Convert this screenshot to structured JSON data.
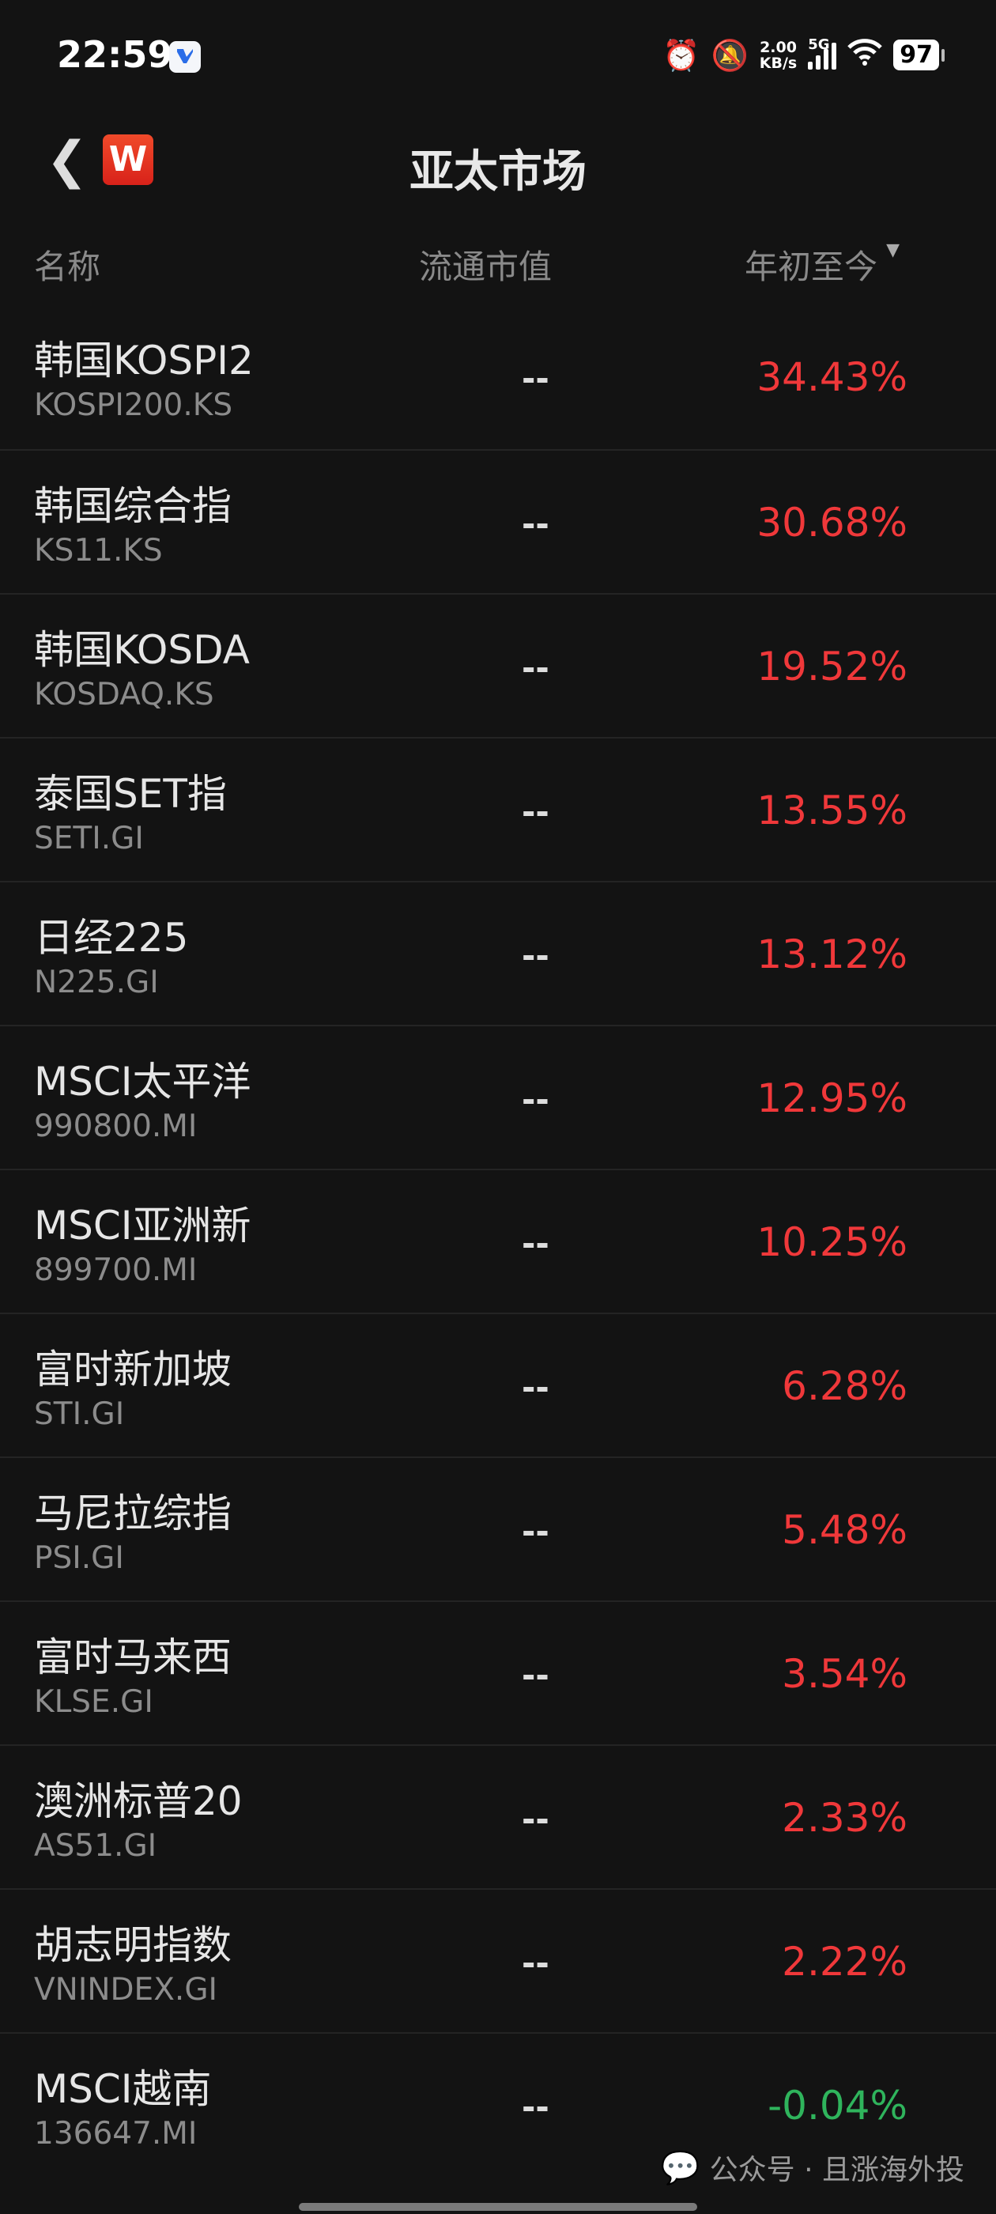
{
  "status_bar": {
    "time": "22:59",
    "net_speed_value": "2.00",
    "net_speed_unit": "KB/s",
    "network": "5G",
    "battery": "97",
    "icons": [
      "alarm-icon",
      "mute-bell-icon",
      "signal-icon",
      "wifi-icon",
      "battery-icon"
    ]
  },
  "header": {
    "title": "亚太市场",
    "logo_text": "W"
  },
  "columns": {
    "name": "名称",
    "market_cap": "流通市值",
    "ytd": "年初至今"
  },
  "rows": [
    {
      "name": "韩国KOSPI2",
      "code": "KOSPI200.KS",
      "cap": "--",
      "ytd": "34.43%",
      "dir": "up"
    },
    {
      "name": "韩国综合指",
      "code": "KS11.KS",
      "cap": "--",
      "ytd": "30.68%",
      "dir": "up"
    },
    {
      "name": "韩国KOSDA",
      "code": "KOSDAQ.KS",
      "cap": "--",
      "ytd": "19.52%",
      "dir": "up"
    },
    {
      "name": "泰国SET指",
      "code": "SETI.GI",
      "cap": "--",
      "ytd": "13.55%",
      "dir": "up"
    },
    {
      "name": "日经225",
      "code": "N225.GI",
      "cap": "--",
      "ytd": "13.12%",
      "dir": "up"
    },
    {
      "name": "MSCI太平洋",
      "code": "990800.MI",
      "cap": "--",
      "ytd": "12.95%",
      "dir": "up"
    },
    {
      "name": "MSCI亚洲新",
      "code": "899700.MI",
      "cap": "--",
      "ytd": "10.25%",
      "dir": "up"
    },
    {
      "name": "富时新加坡",
      "code": "STI.GI",
      "cap": "--",
      "ytd": "6.28%",
      "dir": "up"
    },
    {
      "name": "马尼拉综指",
      "code": "PSI.GI",
      "cap": "--",
      "ytd": "5.48%",
      "dir": "up"
    },
    {
      "name": "富时马来西",
      "code": "KLSE.GI",
      "cap": "--",
      "ytd": "3.54%",
      "dir": "up"
    },
    {
      "name": "澳洲标普20",
      "code": "AS51.GI",
      "cap": "--",
      "ytd": "2.33%",
      "dir": "up"
    },
    {
      "name": "胡志明指数",
      "code": "VNINDEX.GI",
      "cap": "--",
      "ytd": "2.22%",
      "dir": "up"
    },
    {
      "name": "MSCI越南",
      "code": "136647.MI",
      "cap": "--",
      "ytd": "-0.04%",
      "dir": "down"
    }
  ],
  "colors": {
    "up": "#f0383a",
    "down": "#2fb45c",
    "background": "#131313"
  },
  "watermark": "公众号 · 且涨海外投"
}
